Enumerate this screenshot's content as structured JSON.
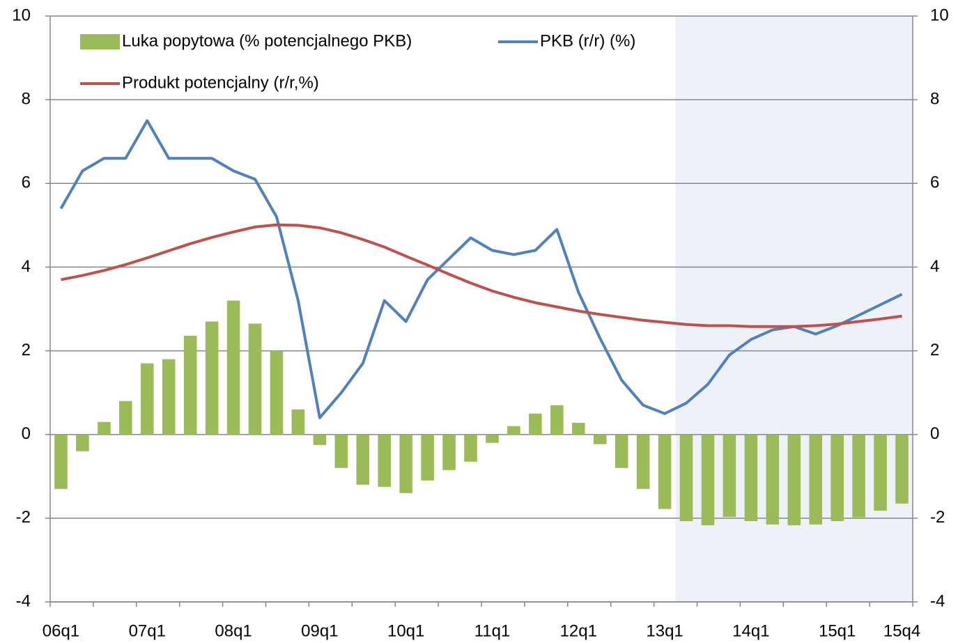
{
  "chart_data": {
    "type": "bar",
    "categories": [
      "06q1",
      null,
      null,
      null,
      "07q1",
      null,
      null,
      null,
      "08q1",
      null,
      null,
      null,
      "09q1",
      null,
      null,
      null,
      "10q1",
      null,
      null,
      null,
      "11q1",
      null,
      null,
      null,
      "12q1",
      null,
      null,
      null,
      "13q1",
      null,
      null,
      null,
      "14q1",
      null,
      null,
      null,
      "15q1",
      null,
      null,
      "15q4"
    ],
    "series": [
      {
        "name": "Luka popytowa (% potencjalnego PKB)",
        "type": "bar",
        "color": "#9bbb59",
        "values": [
          -1.3,
          -0.4,
          0.3,
          0.8,
          1.7,
          1.8,
          2.36,
          2.7,
          3.2,
          2.65,
          2.0,
          0.6,
          -0.25,
          -0.8,
          -1.2,
          -1.25,
          -1.4,
          -1.1,
          -0.85,
          -0.65,
          -0.2,
          0.2,
          0.5,
          0.7,
          0.28,
          -0.23,
          -0.8,
          -1.3,
          -1.78,
          -2.07,
          -2.17,
          -1.97,
          -2.07,
          -2.15,
          -2.17,
          -2.15,
          -2.07,
          -1.98,
          -1.82,
          -1.65
        ]
      },
      {
        "name": "PKB (r/r) (%)",
        "type": "line",
        "color": "#4f81bd",
        "values": [
          5.4,
          6.3,
          6.6,
          6.6,
          7.5,
          6.6,
          6.6,
          6.6,
          6.3,
          6.1,
          5.2,
          3.2,
          0.4,
          1.0,
          1.7,
          3.2,
          2.7,
          3.7,
          4.2,
          4.7,
          4.4,
          4.3,
          4.4,
          4.9,
          3.4,
          2.3,
          1.3,
          0.7,
          0.5,
          0.75,
          1.2,
          1.9,
          2.27,
          2.5,
          2.58,
          2.4,
          2.6,
          2.85,
          3.1,
          3.35
        ]
      },
      {
        "name": "Produkt potencjalny (r/r,%)",
        "type": "line",
        "color": "#c0504d",
        "values": [
          3.7,
          3.8,
          3.92,
          4.06,
          4.22,
          4.39,
          4.56,
          4.71,
          4.84,
          4.96,
          5.01,
          5.0,
          4.94,
          4.82,
          4.66,
          4.48,
          4.26,
          4.05,
          3.83,
          3.62,
          3.43,
          3.28,
          3.15,
          3.05,
          2.95,
          2.87,
          2.8,
          2.73,
          2.68,
          2.63,
          2.6,
          2.6,
          2.58,
          2.58,
          2.58,
          2.6,
          2.64,
          2.7,
          2.76,
          2.83
        ]
      }
    ],
    "ylim": [
      -4,
      10
    ],
    "yticks": [
      -4,
      -2,
      0,
      2,
      4,
      6,
      8,
      10
    ],
    "y2lim": [
      -4,
      10
    ],
    "y2ticks": [
      -4,
      -2,
      0,
      2,
      4,
      6,
      8,
      10
    ],
    "grid": true,
    "shade_start": 29,
    "shade_color": "#eef2f8"
  }
}
